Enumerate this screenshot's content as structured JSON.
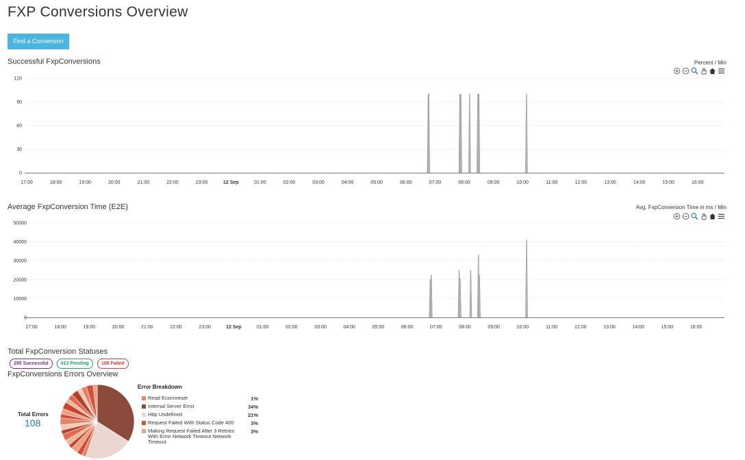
{
  "page": {
    "title": "FXP Conversions Overview",
    "find_button": "Find a Conversion"
  },
  "time_axis": [
    "17:00",
    "18:00",
    "19:00",
    "20:00",
    "21:00",
    "22:00",
    "23:00",
    "12 Sep",
    "01:00",
    "02:00",
    "03:00",
    "04:00",
    "05:00",
    "06:00",
    "07:00",
    "08:00",
    "09:00",
    "10:00",
    "11:00",
    "12:00",
    "13:00",
    "14:00",
    "15:00",
    "16:00"
  ],
  "toolbar_icons": [
    "zoom-in-icon",
    "zoom-out-icon",
    "magnifier-icon",
    "pan-hand-icon",
    "home-icon",
    "menu-icon"
  ],
  "colors": {
    "accent": "#49b6e2",
    "series": "#a6a6a6",
    "link": "#2a6fb5"
  },
  "chart_data": [
    {
      "type": "area",
      "title": "Successful FxpConversions",
      "unit_label": "Percent / Min",
      "ylim": [
        0,
        120
      ],
      "yticks": [
        "0",
        "30",
        "60",
        "90",
        "120"
      ],
      "grid": true,
      "x_axis": "time",
      "series": [
        {
          "values": [
            {
              "x": "06:46",
              "y": 100
            },
            {
              "x": "06:47",
              "y": 100
            },
            {
              "x": "07:51",
              "y": 100
            },
            {
              "x": "07:53",
              "y": 100
            },
            {
              "x": "08:11",
              "y": 100
            },
            {
              "x": "08:28",
              "y": 100
            },
            {
              "x": "08:30",
              "y": 100
            },
            {
              "x": "10:08",
              "y": 100
            }
          ]
        }
      ]
    },
    {
      "type": "area",
      "title": "Average FxpConversion Time (E2E)",
      "unit_label": "Avg. FxpConversion Time in ms / Min",
      "ylim": [
        0,
        50000
      ],
      "yticks": [
        "0",
        "10000",
        "20000",
        "30000",
        "40000",
        "50000"
      ],
      "grid": true,
      "x_axis": "time",
      "series": [
        {
          "values": [
            {
              "x": "06:48",
              "y": 20000
            },
            {
              "x": "06:50",
              "y": 22500
            },
            {
              "x": "07:48",
              "y": 25000
            },
            {
              "x": "07:50",
              "y": 20500
            },
            {
              "x": "08:12",
              "y": 25000
            },
            {
              "x": "08:28",
              "y": 33000
            },
            {
              "x": "08:30",
              "y": 22500
            },
            {
              "x": "10:08",
              "y": 41000
            }
          ]
        }
      ]
    }
  ],
  "statuses": {
    "title": "Total FxpConversion Statuses",
    "badges": [
      {
        "label": "295 Successful",
        "kind": "success"
      },
      {
        "label": "413 Pending",
        "kind": "pending"
      },
      {
        "label": "108 Failed",
        "kind": "failed"
      }
    ]
  },
  "errors": {
    "title": "FxpConversions Errors Overview",
    "total_label": "Total Errors",
    "total_value": "108",
    "breakdown_title": "Error Breakdown",
    "items": [
      {
        "label": "Read Econnreset",
        "pct": "1%",
        "color": "#e8826a"
      },
      {
        "label": "Internal Server Error",
        "pct": "34%",
        "color": "#8c4a3c"
      },
      {
        "label": "Http Undefined",
        "pct": "21%",
        "color": "#ead7d0"
      },
      {
        "label": "Request Failed With Status Code 400",
        "pct": "3%",
        "color": "#d4503a"
      },
      {
        "label": "Making Request Failed After 3 Retries With Error Network Timeout Network Timeout",
        "pct": "3%",
        "color": "#f0a080"
      }
    ]
  }
}
